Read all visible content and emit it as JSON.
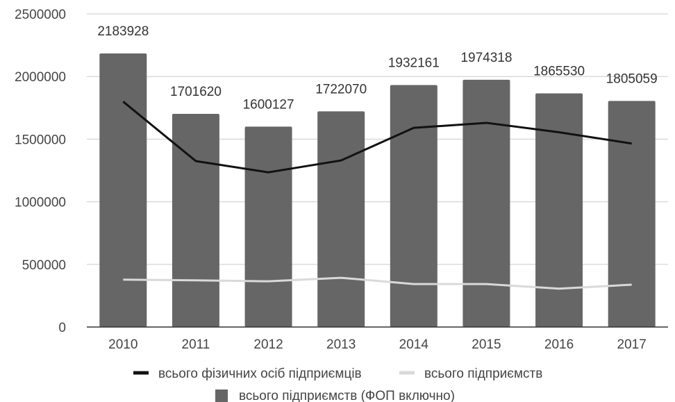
{
  "chart_data": {
    "type": "bar",
    "categories": [
      "2010",
      "2011",
      "2012",
      "2013",
      "2014",
      "2015",
      "2016",
      "2017"
    ],
    "series": [
      {
        "name": "всього підприємств (ФОП включно)",
        "kind": "bar",
        "color": "#666666",
        "values": [
          2183928,
          1701620,
          1600127,
          1722070,
          1932161,
          1974318,
          1865530,
          1805059
        ]
      },
      {
        "name": "всього фізичних осіб підприємців",
        "kind": "line",
        "color": "#111111",
        "values": [
          1800000,
          1325000,
          1235000,
          1330000,
          1590000,
          1630000,
          1555000,
          1465000
        ]
      },
      {
        "name": "всього підприємств",
        "kind": "line",
        "color": "#d9d9d9",
        "values": [
          378000,
          373000,
          365000,
          393000,
          343000,
          343000,
          306000,
          338000
        ]
      }
    ],
    "data_labels": [
      "2183928",
      "1701620",
      "1600127",
      "1722070",
      "1932161",
      "1974318",
      "1865530",
      "1805059"
    ],
    "ylim": [
      0,
      2500000
    ],
    "yticks": [
      "0",
      "500000",
      "1000000",
      "1500000",
      "2000000",
      "2500000"
    ],
    "title": "",
    "xlabel": "",
    "ylabel": "",
    "grid": true,
    "legend_position": "bottom"
  },
  "legend": [
    {
      "label": "всього фізичних осіб підприємців",
      "marker": "line",
      "color": "#111111"
    },
    {
      "label": "всього підприємств",
      "marker": "line",
      "color": "#d9d9d9"
    },
    {
      "label": "всього підприємств (ФОП включно)",
      "marker": "square",
      "color": "#666666"
    }
  ]
}
